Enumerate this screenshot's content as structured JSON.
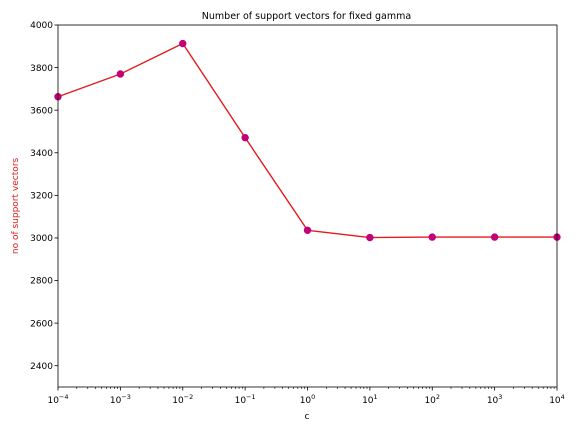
{
  "chart_data": {
    "type": "line",
    "title": "Number of support vectors for fixed gamma",
    "xlabel": "c",
    "ylabel": "no of support vectors",
    "x_scale": "log",
    "xlim": [
      0.0001,
      10000
    ],
    "ylim": [
      2300,
      4000
    ],
    "x_ticks": [
      {
        "value": 0.0001,
        "base": "10",
        "exp": "-4"
      },
      {
        "value": 0.001,
        "base": "10",
        "exp": "-3"
      },
      {
        "value": 0.01,
        "base": "10",
        "exp": "-2"
      },
      {
        "value": 0.1,
        "base": "10",
        "exp": "-1"
      },
      {
        "value": 1,
        "base": "10",
        "exp": "0"
      },
      {
        "value": 10,
        "base": "10",
        "exp": "1"
      },
      {
        "value": 100,
        "base": "10",
        "exp": "2"
      },
      {
        "value": 1000,
        "base": "10",
        "exp": "3"
      },
      {
        "value": 10000,
        "base": "10",
        "exp": "4"
      }
    ],
    "y_ticks": [
      2400,
      2600,
      2800,
      3000,
      3200,
      3400,
      3600,
      3800,
      4000
    ],
    "grid": false,
    "series": [
      {
        "x": [
          0.0001,
          0.001,
          0.01,
          0.1,
          1,
          10,
          100,
          1000,
          10000
        ],
        "values": [
          3663,
          3770,
          3913,
          3471,
          3036,
          3002,
          3004,
          3004,
          3004
        ],
        "line_color": "#e41a1c",
        "marker_color": "#c2007a"
      }
    ],
    "colors": {
      "ylabel": "#e41a1c",
      "axis": "#000000"
    }
  }
}
